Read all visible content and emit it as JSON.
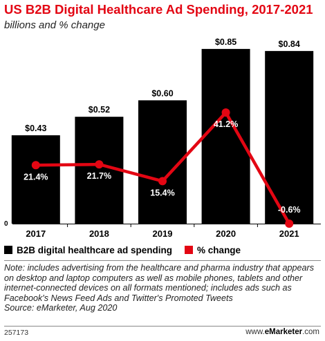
{
  "header": {
    "title": "US B2B Digital Healthcare Ad Spending, 2017-2021",
    "subtitle": "billions and % change"
  },
  "chart_data": {
    "type": "bar",
    "categories": [
      "2017",
      "2018",
      "2019",
      "2020",
      "2021"
    ],
    "ylim": [
      0,
      0.9
    ],
    "y_zero_label": "0",
    "series": [
      {
        "name": "B2B digital healthcare ad spending",
        "type": "bar",
        "color": "#000000",
        "values": [
          0.43,
          0.52,
          0.6,
          0.85,
          0.84
        ],
        "labels": [
          "$0.43",
          "$0.52",
          "$0.60",
          "$0.85",
          "$0.84"
        ]
      },
      {
        "name": "% change",
        "type": "line",
        "color": "#e30613",
        "values": [
          21.4,
          21.7,
          15.4,
          41.2,
          -0.6
        ],
        "labels": [
          "21.4%",
          "21.7%",
          "15.4%",
          "41.2%",
          "-0.6%"
        ]
      }
    ],
    "secondary_ylim": [
      -0.6,
      69
    ],
    "legend_position": "bottom",
    "grid": false
  },
  "legend": {
    "bar_label": "B2B digital healthcare ad spending",
    "line_label": "% change"
  },
  "note": "Note: includes advertising from the healthcare and pharma industry that appears on desktop and laptop computers as well as mobile phones, tablets and other internet-connected devices on all formats mentioned; includes ads such as Facebook's News Feed Ads and Twitter's Promoted Tweets",
  "source": "Source: eMarketer, Aug 2020",
  "footer": {
    "chart_id": "257173",
    "brand_prefix": "www.",
    "brand_name": "eMarketer",
    "brand_suffix": ".com"
  },
  "colors": {
    "accent": "#e30613",
    "bar": "#000000"
  }
}
